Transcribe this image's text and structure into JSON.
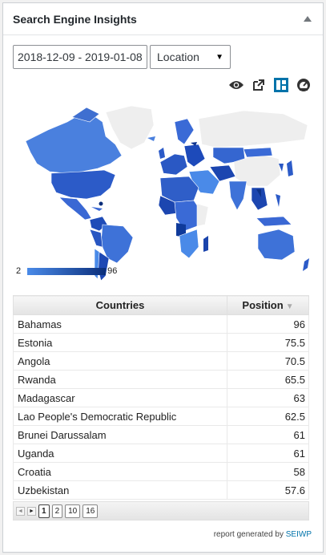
{
  "widget": {
    "title": "Search Engine Insights"
  },
  "filters": {
    "date_range": "2018-12-09 - 2019-01-08",
    "dimension": "Location"
  },
  "legend": {
    "min": "2",
    "max": "96"
  },
  "colors": {
    "map_low": "#4a8ae8",
    "map_high": "#0a2e7a",
    "map_nodata": "#eeeeee",
    "accent": "#0073aa"
  },
  "toolbar_icons": [
    "eye-icon",
    "external-link-icon",
    "layout-icon",
    "dashboard-gauge-icon"
  ],
  "table": {
    "headers": [
      "Countries",
      "Position"
    ],
    "rows": [
      {
        "country": "Bahamas",
        "position": "96"
      },
      {
        "country": "Estonia",
        "position": "75.5"
      },
      {
        "country": "Angola",
        "position": "70.5"
      },
      {
        "country": "Rwanda",
        "position": "65.5"
      },
      {
        "country": "Madagascar",
        "position": "63"
      },
      {
        "country": "Lao People's Democratic Republic",
        "position": "62.5"
      },
      {
        "country": "Brunei Darussalam",
        "position": "61"
      },
      {
        "country": "Uganda",
        "position": "61"
      },
      {
        "country": "Croatia",
        "position": "58"
      },
      {
        "country": "Uzbekistan",
        "position": "57.6"
      }
    ]
  },
  "pagination": {
    "pages": [
      "1",
      "2",
      "10",
      "16"
    ],
    "current": "1"
  },
  "footer": {
    "prefix": "report generated by",
    "link": "SEIWP"
  }
}
